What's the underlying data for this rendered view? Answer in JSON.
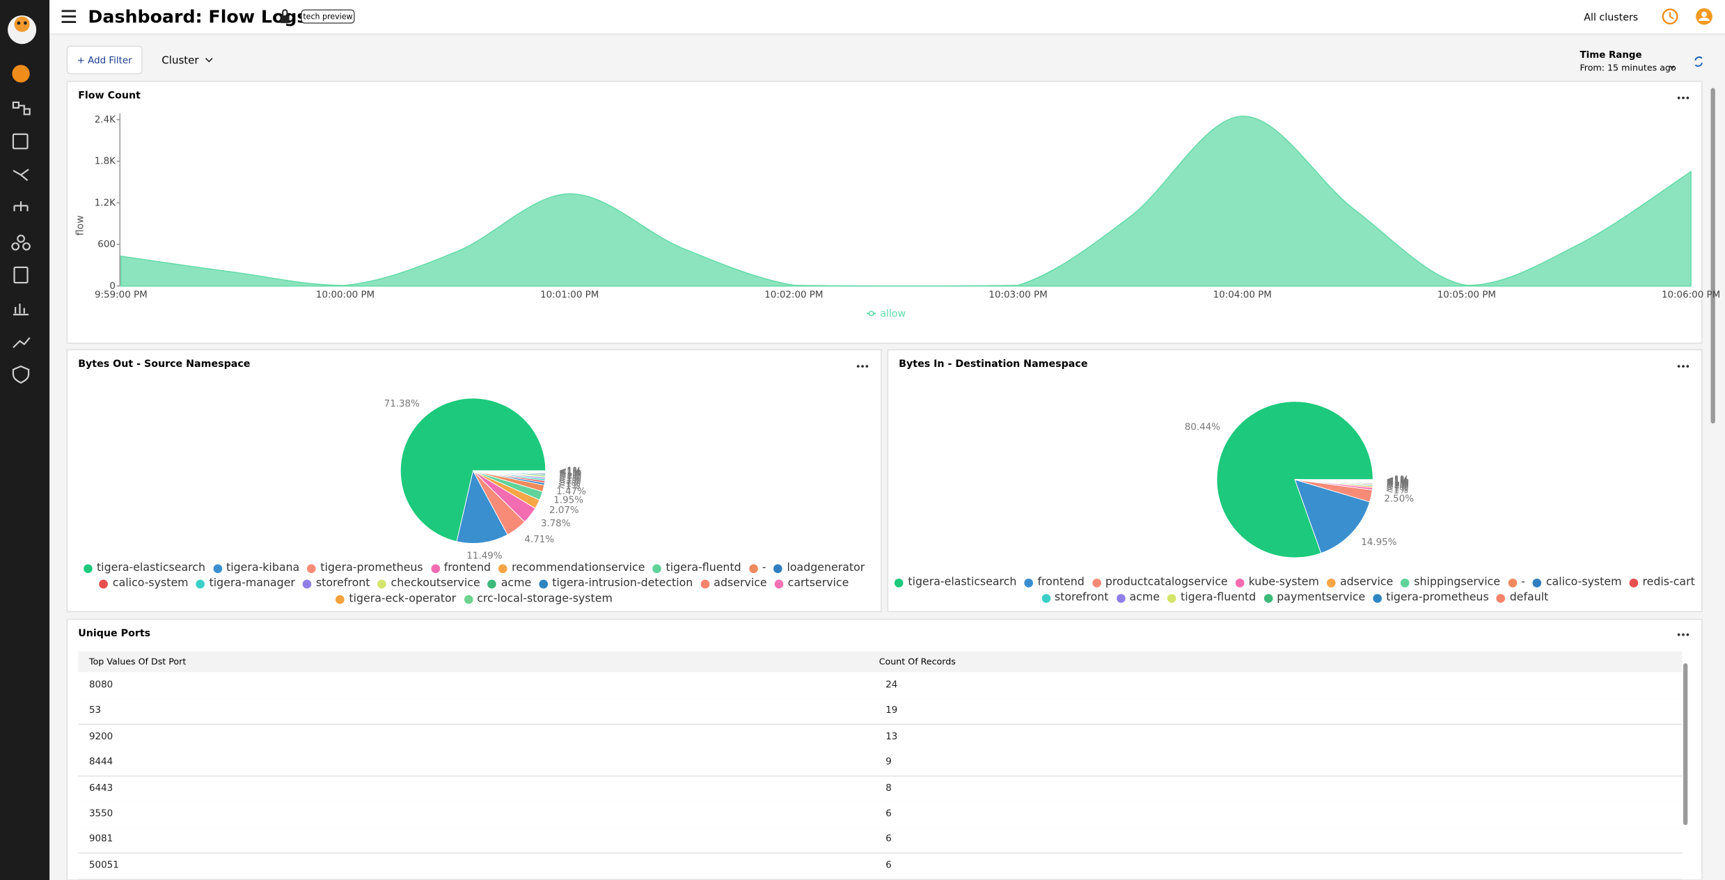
{
  "header": {
    "title": "Dashboard: Flow Logs",
    "badge": "tech preview",
    "cluster_selector": "All clusters"
  },
  "toolbar": {
    "add_filter": "+ Add Filter",
    "cluster": "Cluster",
    "time_range_label": "Time Range",
    "time_range_value": "From: 15 minutes ago"
  },
  "chart_data": [
    {
      "type": "area",
      "title": "Flow Count",
      "y_label": "flow",
      "categories": [
        "9:59:00 PM",
        null,
        "10:00:00 PM",
        null,
        "10:01:00 PM",
        null,
        "10:02:00 PM",
        null,
        "10:03:00 PM",
        null,
        "10:04:00 PM",
        null,
        "10:05:00 PM",
        null,
        "10:06:00 PM"
      ],
      "series": [
        {
          "name": "allow",
          "color": "#66dba8",
          "values": [
            430,
            200,
            10,
            500,
            1330,
            550,
            10,
            0,
            10,
            1000,
            2450,
            1100,
            10,
            600,
            1650
          ]
        }
      ],
      "ylim": [
        0,
        2460
      ],
      "yticks": [
        0,
        600,
        {
          "value": 1200,
          "label": "1.2K"
        },
        {
          "value": 1800,
          "label": "1.8K"
        },
        {
          "value": 2400,
          "label": "2.4K"
        }
      ]
    },
    {
      "type": "pie",
      "title": "Bytes Out - Source Namespace",
      "categories": [
        "tigera-elasticsearch",
        "tigera-kibana",
        "tigera-prometheus",
        "frontend",
        "recommendationservice",
        "tigera-fluentd",
        "-",
        "loadgenerator",
        "calico-system",
        "tigera-manager",
        "storefront",
        "checkoutservice",
        "acme",
        "tigera-intrusion-detection",
        "adservice",
        "cartservice",
        "tigera-eck-operator",
        "crc-local-storage-system"
      ],
      "values": [
        71.38,
        11.49,
        4.71,
        3.78,
        2.07,
        1.95,
        1.47,
        0.5,
        0.45,
        0.4,
        0.35,
        0.3,
        0.3,
        0.25,
        0.2,
        0.15,
        0.15,
        0.1
      ],
      "value_labels": [
        "71.38%",
        "11.49%",
        "4.71%",
        "3.78%",
        "2.07%",
        "1.95%",
        "1.47%",
        "<1%",
        "<1%",
        "<1%",
        "<1%",
        "<1%",
        "<1%",
        "<1%",
        "<1%",
        "<1%",
        "<1%",
        "<1%"
      ],
      "colors": [
        "#1dc97c",
        "#3a8fcf",
        "#f88b78",
        "#f36cb2",
        "#f7a546",
        "#5fd39b",
        "#f08a5d",
        "#2f7fc1",
        "#e8504f",
        "#3ccfc8",
        "#8f7ee8",
        "#d4e56b",
        "#3cba7a",
        "#2e86c1",
        "#f5846c",
        "#f472b6",
        "#f6a23c",
        "#6ed38f"
      ]
    },
    {
      "type": "pie",
      "title": "Bytes In - Destination Namespace",
      "categories": [
        "tigera-elasticsearch",
        "frontend",
        "productcatalogservice",
        "kube-system",
        "adservice",
        "shippingservice",
        "-",
        "calico-system",
        "redis-cart",
        "storefront",
        "acme",
        "tigera-fluentd",
        "paymentservice",
        "tigera-prometheus",
        "default"
      ],
      "values": [
        80.44,
        14.95,
        2.5,
        0.45,
        0.3,
        0.25,
        0.2,
        0.18,
        0.16,
        0.14,
        0.12,
        0.1,
        0.08,
        0.07,
        0.06
      ],
      "value_labels": [
        "80.44%",
        "14.95%",
        "2.50%",
        "<1%",
        "<1%",
        "<1%",
        "<1%",
        "<1%",
        "<1%",
        "<1%",
        "<1%",
        "<1%",
        "<1%",
        "<1%",
        "<1%"
      ],
      "colors": [
        "#1dc97c",
        "#3a8fcf",
        "#f88b78",
        "#f36cb2",
        "#f7a546",
        "#5fd39b",
        "#f08a5d",
        "#2f7fc1",
        "#e8504f",
        "#3ccfc8",
        "#8f7ee8",
        "#d4e56b",
        "#3cba7a",
        "#2e86c1",
        "#f5846c"
      ]
    }
  ],
  "table": {
    "title": "Unique Ports",
    "columns": [
      "Top Values Of Dst Port",
      "Count Of Records"
    ],
    "rows": [
      [
        "8080",
        24
      ],
      [
        "53",
        19
      ],
      [
        "9200",
        13
      ],
      [
        "8444",
        9
      ],
      [
        "6443",
        8
      ],
      [
        "3550",
        6
      ],
      [
        "9081",
        6
      ],
      [
        "50051",
        6
      ]
    ]
  }
}
